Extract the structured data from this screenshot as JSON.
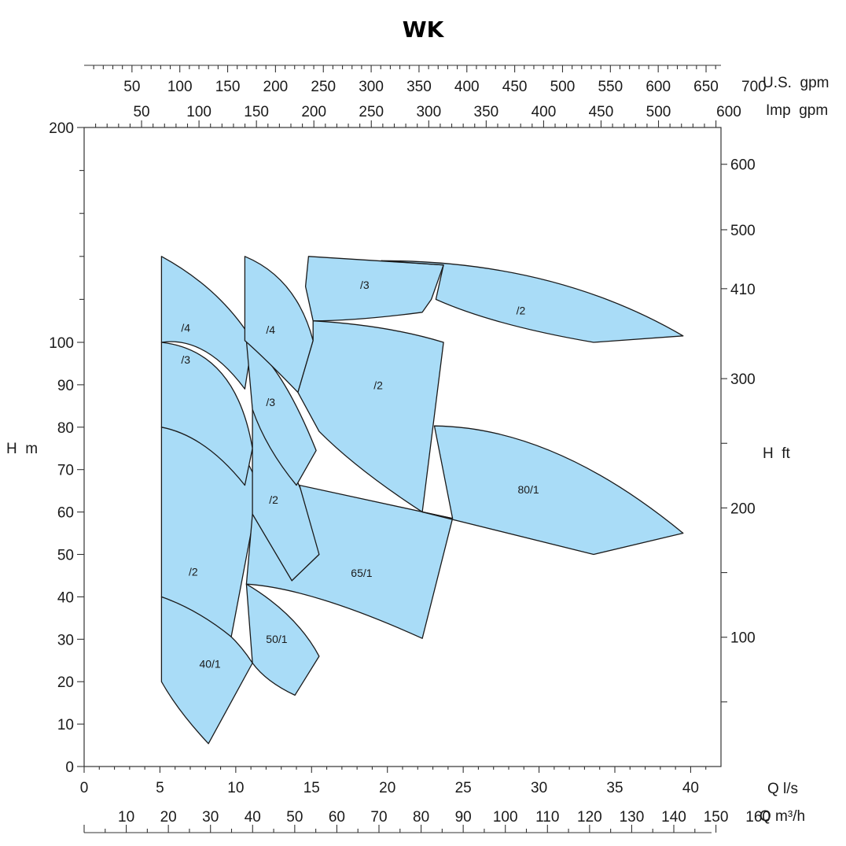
{
  "chart_data": {
    "type": "area",
    "title": "WK",
    "colors": {
      "fill": "#a9dcf7",
      "stroke": "#1a1a1a",
      "axis": "#333333"
    },
    "axes": {
      "q_ls": {
        "label": "Q l/s",
        "range": [
          0,
          42
        ],
        "ticks": [
          "0",
          "5",
          "10",
          "15",
          "20",
          "25",
          "30",
          "35",
          "40"
        ],
        "tick_values": [
          0,
          5,
          10,
          15,
          20,
          25,
          30,
          35,
          40
        ]
      },
      "q_m3h": {
        "label": "Q m³/h",
        "range": [
          0,
          151.2
        ],
        "ticks": [
          "10",
          "20",
          "30",
          "40",
          "50",
          "60",
          "70",
          "80",
          "90",
          "100",
          "110",
          "120",
          "130",
          "140",
          "150",
          "160"
        ],
        "tick_values": [
          10,
          20,
          30,
          40,
          50,
          60,
          70,
          80,
          90,
          100,
          110,
          120,
          130,
          140,
          150,
          160
        ]
      },
      "us_gpm": {
        "label": "U.S.  gpm",
        "ticks": [
          "50",
          "100",
          "150",
          "200",
          "250",
          "300",
          "350",
          "400",
          "450",
          "500",
          "550",
          "600",
          "650",
          "700"
        ],
        "tick_values": [
          50,
          100,
          150,
          200,
          250,
          300,
          350,
          400,
          450,
          500,
          550,
          600,
          650,
          700
        ]
      },
      "imp_gpm": {
        "label": "Imp  gpm",
        "ticks": [
          "50",
          "100",
          "150",
          "200",
          "250",
          "300",
          "350",
          "400",
          "450",
          "500",
          "600"
        ],
        "tick_values": [
          50,
          100,
          150,
          200,
          250,
          300,
          350,
          400,
          450,
          500,
          600
        ]
      },
      "h_m": {
        "label": "H  m",
        "range": [
          0,
          200
        ],
        "ticks": [
          "0",
          "10",
          "20",
          "30",
          "40",
          "50",
          "60",
          "70",
          "80",
          "90",
          "100",
          "200"
        ],
        "tick_values": [
          0,
          10,
          20,
          30,
          40,
          50,
          60,
          70,
          80,
          90,
          100,
          200
        ]
      },
      "h_ft": {
        "label": "H  ft",
        "ticks": [
          "100",
          "200",
          "300",
          "410",
          "500",
          "600"
        ],
        "tick_values": [
          100,
          200,
          300,
          410,
          500,
          600
        ]
      }
    },
    "regions": [
      {
        "label": "40/1",
        "label_at": [
          8.3,
          23.3
        ],
        "path": [
          [
            "M",
            5.1,
            40
          ],
          [
            "Q",
            9,
            36,
            11.1,
            24.4
          ],
          [
            "L",
            8.2,
            5.4
          ],
          [
            "Q",
            6.2,
            13,
            5.1,
            20
          ],
          [
            "Z"
          ]
        ]
      },
      {
        "label": "/2",
        "label_at": [
          7.2,
          45
        ],
        "path": [
          [
            "M",
            5.1,
            80
          ],
          [
            "Q",
            13,
            78,
            11,
            55
          ],
          [
            "L",
            9.7,
            30.6
          ],
          [
            "Q",
            7.5,
            37,
            5.1,
            40
          ],
          [
            "Z"
          ]
        ]
      },
      {
        "label": "/3",
        "label_at": [
          6.7,
          95
        ],
        "path": [
          [
            "M",
            5.1,
            100
          ],
          [
            "Q",
            10,
            98,
            11.1,
            75
          ],
          [
            "L",
            10.6,
            66.3
          ],
          [
            "Q",
            8,
            78,
            5.1,
            80
          ],
          [
            "Z"
          ]
        ]
      },
      {
        "label": "/4",
        "label_at": [
          6.7,
          105
        ],
        "path": [
          [
            "M",
            5.1,
            140
          ],
          [
            "Q",
            9,
            125,
            11.1,
            100.8
          ],
          [
            "L",
            10.6,
            89
          ],
          [
            "Q",
            8,
            103,
            5.1,
            100
          ],
          [
            "Z"
          ]
        ]
      },
      {
        "label": "50/1",
        "label_at": [
          12.7,
          29.1
        ],
        "path": [
          [
            "M",
            10.7,
            43
          ],
          [
            "Q",
            14,
            36,
            15.5,
            26
          ],
          [
            "L",
            13.9,
            16.8
          ],
          [
            "Q",
            12,
            20,
            11.1,
            24.4
          ],
          [
            "Z"
          ]
        ]
      },
      {
        "label": "/2",
        "label_at": [
          12.5,
          62
        ],
        "path": [
          [
            "M",
            11.1,
            84.2
          ],
          [
            "Q",
            14.5,
            70,
            15.5,
            50
          ],
          [
            "L",
            13.7,
            43.8
          ],
          [
            "Q",
            12,
            54,
            11.1,
            59.5
          ],
          [
            "Z"
          ]
        ]
      },
      {
        "label": "/3",
        "label_at": [
          12.3,
          85
        ],
        "path": [
          [
            "M",
            10.7,
            100.8
          ],
          [
            "Q",
            13,
            95,
            15.3,
            74.5
          ],
          [
            "L",
            14,
            66.3
          ],
          [
            "Q",
            12,
            75,
            11.1,
            84.2
          ],
          [
            "Z"
          ]
        ]
      },
      {
        "label": "/4",
        "label_at": [
          12.3,
          104
        ],
        "path": [
          [
            "M",
            10.6,
            140
          ],
          [
            "Q",
            14,
            130,
            15.1,
            100.8
          ],
          [
            "L",
            14.1,
            88.2
          ],
          [
            "Q",
            12,
            96,
            10.6,
            100.8
          ],
          [
            "Z"
          ]
        ]
      },
      {
        "label": "65/1",
        "label_at": [
          18.3,
          44.7
        ],
        "path": [
          [
            "M",
            14.2,
            66.3
          ],
          [
            "L",
            24.3,
            58.5
          ],
          [
            "L",
            22.3,
            30.2
          ],
          [
            "Q",
            15,
            42,
            10.7,
            43
          ],
          [
            "L",
            11.1,
            59.5
          ],
          [
            "L",
            13.7,
            43.8
          ],
          [
            "L",
            15.5,
            50
          ],
          [
            "Z"
          ]
        ]
      },
      {
        "label": "/2",
        "label_at": [
          19.4,
          89
        ],
        "path": [
          [
            "M",
            15.1,
            110
          ],
          [
            "Q",
            20,
            108,
            23.7,
            100
          ],
          [
            "L",
            22.3,
            60
          ],
          [
            "Q",
            18,
            70,
            15.5,
            79
          ],
          [
            "L",
            14.1,
            88.2
          ],
          [
            "L",
            15.1,
            100.8
          ],
          [
            "Z"
          ]
        ]
      },
      {
        "label": "/3",
        "label_at": [
          18.5,
          125
        ],
        "path": [
          [
            "M",
            14.8,
            140
          ],
          [
            "L",
            23.7,
            136
          ],
          [
            "L",
            22.9,
            120
          ],
          [
            "L",
            22.3,
            114
          ],
          [
            "Q",
            18,
            110,
            15.1,
            110
          ],
          [
            "L",
            14.6,
            126
          ],
          [
            "Z"
          ]
        ]
      },
      {
        "label": "/2",
        "label_at": [
          28.8,
          113
        ],
        "path": [
          [
            "M",
            19.6,
            138
          ],
          [
            "Q",
            31,
            138,
            39.5,
            103
          ],
          [
            "L",
            33.6,
            100
          ],
          [
            "Q",
            27,
            108,
            23.2,
            120
          ],
          [
            "L",
            23.7,
            136
          ],
          [
            "Z"
          ]
        ]
      },
      {
        "label": "80/1",
        "label_at": [
          29.3,
          64.4
        ],
        "path": [
          [
            "M",
            23.1,
            80.3
          ],
          [
            "Q",
            31,
            80,
            39.5,
            55
          ],
          [
            "L",
            33.6,
            50
          ],
          [
            "L",
            22.3,
            60
          ],
          [
            "L",
            24.3,
            58.5
          ],
          [
            "Z"
          ]
        ]
      }
    ]
  }
}
